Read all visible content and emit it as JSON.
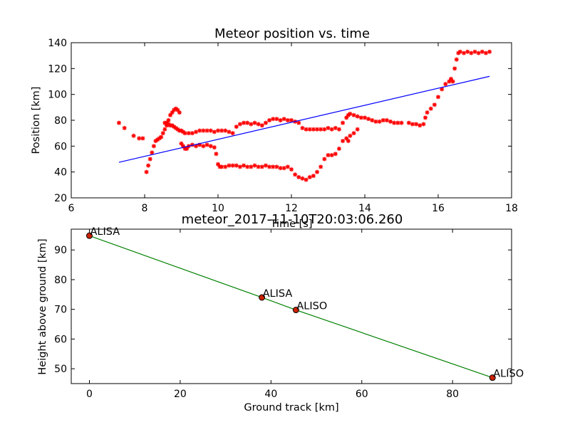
{
  "chart_data": [
    {
      "type": "scatter",
      "title": "Meteor position vs. time",
      "xlabel": "Time [s]",
      "ylabel": "Position [km]",
      "xlim": [
        6,
        18
      ],
      "ylim": [
        20,
        140
      ],
      "xticks": [
        6,
        8,
        10,
        12,
        14,
        16,
        18
      ],
      "yticks": [
        20,
        40,
        60,
        80,
        100,
        120,
        140
      ],
      "grid": false,
      "colors": {
        "points": "#ff0000",
        "fit": "#0000ff"
      },
      "series": [
        {
          "style": "red star markers",
          "points": [
            [
              7.3,
              78
            ],
            [
              7.45,
              74
            ],
            [
              7.7,
              68
            ],
            [
              7.85,
              66
            ],
            [
              7.95,
              66
            ],
            [
              8.05,
              40
            ],
            [
              8.1,
              45
            ],
            [
              8.15,
              50
            ],
            [
              8.2,
              55
            ],
            [
              8.25,
              60
            ],
            [
              8.3,
              64
            ],
            [
              8.35,
              65
            ],
            [
              8.4,
              66
            ],
            [
              8.45,
              67
            ],
            [
              8.5,
              70
            ],
            [
              8.55,
              73
            ],
            [
              8.6,
              76
            ],
            [
              8.65,
              80
            ],
            [
              8.7,
              84
            ],
            [
              8.75,
              86
            ],
            [
              8.8,
              88
            ],
            [
              8.85,
              89
            ],
            [
              8.9,
              88
            ],
            [
              8.95,
              86
            ],
            [
              8.55,
              78
            ],
            [
              8.6,
              78
            ],
            [
              8.65,
              77
            ],
            [
              8.7,
              76
            ],
            [
              8.75,
              76
            ],
            [
              8.8,
              75
            ],
            [
              8.85,
              74
            ],
            [
              8.9,
              73
            ],
            [
              8.95,
              72
            ],
            [
              9.0,
              72
            ],
            [
              9.05,
              71
            ],
            [
              9.1,
              70
            ],
            [
              9.2,
              70
            ],
            [
              9.3,
              70
            ],
            [
              9.4,
              71
            ],
            [
              9.5,
              72
            ],
            [
              9.6,
              72
            ],
            [
              9.7,
              72
            ],
            [
              9.8,
              72
            ],
            [
              9.9,
              71
            ],
            [
              10.0,
              72
            ],
            [
              10.1,
              72
            ],
            [
              10.2,
              72
            ],
            [
              10.3,
              71
            ],
            [
              10.4,
              70
            ],
            [
              10.5,
              75
            ],
            [
              10.6,
              77
            ],
            [
              10.7,
              78
            ],
            [
              10.8,
              78
            ],
            [
              10.9,
              77
            ],
            [
              11.0,
              78
            ],
            [
              11.1,
              77
            ],
            [
              11.2,
              76
            ],
            [
              11.3,
              78
            ],
            [
              11.4,
              80
            ],
            [
              11.5,
              81
            ],
            [
              11.6,
              81
            ],
            [
              11.7,
              80
            ],
            [
              11.8,
              81
            ],
            [
              11.9,
              80
            ],
            [
              12.0,
              80
            ],
            [
              12.1,
              79
            ],
            [
              12.2,
              78
            ],
            [
              9.0,
              62
            ],
            [
              9.05,
              60
            ],
            [
              9.1,
              58
            ],
            [
              9.15,
              58
            ],
            [
              9.2,
              60
            ],
            [
              9.3,
              61
            ],
            [
              9.4,
              60
            ],
            [
              9.5,
              61
            ],
            [
              9.6,
              60
            ],
            [
              9.7,
              61
            ],
            [
              9.8,
              60
            ],
            [
              9.9,
              59
            ],
            [
              9.95,
              54
            ],
            [
              10.0,
              46
            ],
            [
              10.05,
              44
            ],
            [
              10.1,
              44
            ],
            [
              10.2,
              44
            ],
            [
              10.3,
              45
            ],
            [
              10.4,
              45
            ],
            [
              10.5,
              45
            ],
            [
              10.6,
              44
            ],
            [
              10.7,
              45
            ],
            [
              10.8,
              44
            ],
            [
              10.9,
              44
            ],
            [
              11.0,
              45
            ],
            [
              11.1,
              44
            ],
            [
              11.2,
              44
            ],
            [
              11.3,
              45
            ],
            [
              11.4,
              44
            ],
            [
              11.5,
              44
            ],
            [
              11.6,
              44
            ],
            [
              11.7,
              43
            ],
            [
              11.8,
              43
            ],
            [
              11.9,
              44
            ],
            [
              12.0,
              42
            ],
            [
              12.1,
              38
            ],
            [
              12.2,
              36
            ],
            [
              12.3,
              35
            ],
            [
              12.4,
              34
            ],
            [
              12.5,
              36
            ],
            [
              12.6,
              37
            ],
            [
              12.7,
              40
            ],
            [
              12.8,
              44
            ],
            [
              12.9,
              50
            ],
            [
              13.0,
              53
            ],
            [
              13.1,
              53
            ],
            [
              13.2,
              54
            ],
            [
              13.3,
              58
            ],
            [
              13.4,
              64
            ],
            [
              13.5,
              66
            ],
            [
              13.55,
              64
            ],
            [
              13.6,
              68
            ],
            [
              13.7,
              70
            ],
            [
              13.8,
              73
            ],
            [
              12.3,
              74
            ],
            [
              12.4,
              73
            ],
            [
              12.5,
              73
            ],
            [
              12.6,
              73
            ],
            [
              12.7,
              73
            ],
            [
              12.8,
              73
            ],
            [
              12.9,
              73
            ],
            [
              13.0,
              74
            ],
            [
              13.1,
              73
            ],
            [
              13.2,
              74
            ],
            [
              13.3,
              73
            ],
            [
              13.4,
              78
            ],
            [
              13.5,
              82
            ],
            [
              13.55,
              84
            ],
            [
              13.6,
              85
            ],
            [
              13.7,
              84
            ],
            [
              13.8,
              83
            ],
            [
              13.9,
              82
            ],
            [
              14.0,
              82
            ],
            [
              14.1,
              81
            ],
            [
              14.2,
              80
            ],
            [
              14.3,
              79
            ],
            [
              14.4,
              79
            ],
            [
              14.5,
              80
            ],
            [
              14.6,
              80
            ],
            [
              14.7,
              79
            ],
            [
              14.8,
              78
            ],
            [
              14.9,
              78
            ],
            [
              15.0,
              78
            ],
            [
              15.2,
              78
            ],
            [
              15.3,
              77
            ],
            [
              15.4,
              77
            ],
            [
              15.5,
              76
            ],
            [
              15.6,
              77
            ],
            [
              15.65,
              82
            ],
            [
              15.7,
              86
            ],
            [
              15.8,
              89
            ],
            [
              15.9,
              92
            ],
            [
              16.0,
              98
            ],
            [
              16.1,
              104
            ],
            [
              16.2,
              108
            ],
            [
              16.3,
              110
            ],
            [
              16.35,
              112
            ],
            [
              16.4,
              110
            ],
            [
              16.45,
              120
            ],
            [
              16.5,
              127
            ],
            [
              16.55,
              132
            ],
            [
              16.6,
              133
            ],
            [
              16.7,
              132
            ],
            [
              16.8,
              133
            ],
            [
              16.9,
              132
            ],
            [
              17.0,
              133
            ],
            [
              17.1,
              132
            ],
            [
              17.2,
              133
            ],
            [
              17.3,
              132
            ],
            [
              17.4,
              133
            ]
          ]
        },
        {
          "style": "blue fit line",
          "x": [
            7.3,
            17.4
          ],
          "y": [
            47.5,
            114.0
          ]
        }
      ]
    },
    {
      "type": "line",
      "title": "meteor_2017-11-10T20:03:06.260",
      "xlabel": "Ground track [km]",
      "ylabel": "Height above ground [km]",
      "xlim": [
        -4,
        93
      ],
      "ylim": [
        45,
        97
      ],
      "xticks": [
        0,
        20,
        40,
        60,
        80
      ],
      "yticks": [
        50,
        60,
        70,
        80,
        90
      ],
      "grid": false,
      "colors": {
        "line": "#008000",
        "marker_fill": "#cc2200",
        "marker_edge": "#000000"
      },
      "points": [
        {
          "x": 0.0,
          "y": 94.8,
          "label": "ALISA"
        },
        {
          "x": 38.0,
          "y": 74.0,
          "label": "ALISA"
        },
        {
          "x": 45.5,
          "y": 69.8,
          "label": "ALISO"
        },
        {
          "x": 88.8,
          "y": 47.0,
          "label": "ALISO"
        }
      ]
    }
  ]
}
